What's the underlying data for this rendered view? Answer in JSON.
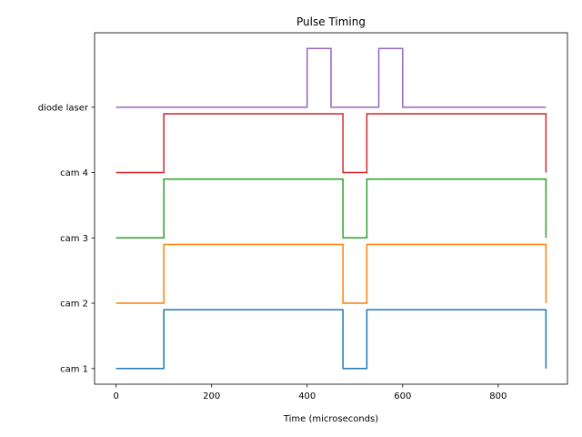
{
  "chart_data": {
    "type": "line",
    "title": "Pulse Timing",
    "xlabel": "Time (microseconds)",
    "ylabel": "",
    "xlim": [
      -45,
      945
    ],
    "x_ticks": [
      0,
      200,
      400,
      600,
      800
    ],
    "x_tick_labels": [
      "0",
      "200",
      "400",
      "600",
      "800"
    ],
    "y_categories": [
      "cam 1",
      "cam 2",
      "cam 3",
      "cam 4",
      "diode laser"
    ],
    "grid": false,
    "series": [
      {
        "name": "cam 1",
        "color": "#1f77b4",
        "points": [
          [
            0,
            0
          ],
          [
            100,
            0
          ],
          [
            100,
            0.9
          ],
          [
            475,
            0.9
          ],
          [
            475,
            0
          ],
          [
            525,
            0
          ],
          [
            525,
            0.9
          ],
          [
            900,
            0.9
          ],
          [
            900,
            0
          ]
        ]
      },
      {
        "name": "cam 2",
        "color": "#ff7f0e",
        "points": [
          [
            0,
            1
          ],
          [
            100,
            1
          ],
          [
            100,
            1.9
          ],
          [
            475,
            1.9
          ],
          [
            475,
            1
          ],
          [
            525,
            1
          ],
          [
            525,
            1.9
          ],
          [
            900,
            1.9
          ],
          [
            900,
            1
          ]
        ]
      },
      {
        "name": "cam 3",
        "color": "#2ca02c",
        "points": [
          [
            0,
            2
          ],
          [
            100,
            2
          ],
          [
            100,
            2.9
          ],
          [
            475,
            2.9
          ],
          [
            475,
            2
          ],
          [
            525,
            2
          ],
          [
            525,
            2.9
          ],
          [
            900,
            2.9
          ],
          [
            900,
            2
          ]
        ]
      },
      {
        "name": "cam 4",
        "color": "#d62728",
        "points": [
          [
            0,
            3
          ],
          [
            100,
            3
          ],
          [
            100,
            3.9
          ],
          [
            475,
            3.9
          ],
          [
            475,
            3
          ],
          [
            525,
            3
          ],
          [
            525,
            3.9
          ],
          [
            900,
            3.9
          ],
          [
            900,
            3
          ]
        ]
      },
      {
        "name": "diode laser",
        "color": "#9467bd",
        "points": [
          [
            0,
            4
          ],
          [
            400,
            4
          ],
          [
            400,
            4.9
          ],
          [
            450,
            4.9
          ],
          [
            450,
            4
          ],
          [
            550,
            4
          ],
          [
            550,
            4.9
          ],
          [
            600,
            4.9
          ],
          [
            600,
            4
          ],
          [
            900,
            4
          ]
        ]
      }
    ]
  }
}
